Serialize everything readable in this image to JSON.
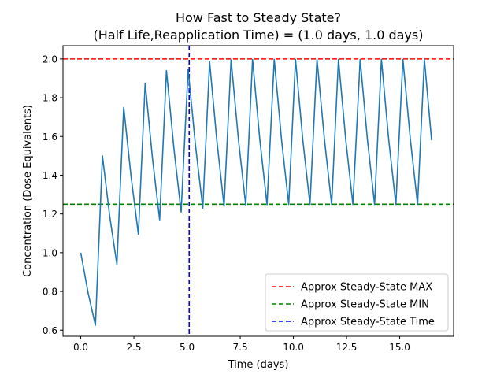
{
  "chart_data": {
    "type": "line",
    "title_line1": "How Fast to Steady State?",
    "title_line2": "(Half Life,Reapplication Time) = (1.0 days, 1.0 days)",
    "xlabel": "Time (days)",
    "ylabel": "Concentration (Dose Equivalents)",
    "xlim": [
      -0.835,
      17.535
    ],
    "ylim": [
      0.5685,
      2.0686
    ],
    "xticks": [
      0.0,
      2.5,
      5.0,
      7.5,
      10.0,
      12.5,
      15.0
    ],
    "xtick_labels": [
      "0.0",
      "2.5",
      "5.0",
      "7.5",
      "10.0",
      "12.5",
      "15.0"
    ],
    "yticks": [
      0.6,
      0.8,
      1.0,
      1.2,
      1.4,
      1.6,
      1.8,
      2.0
    ],
    "ytick_labels": [
      "0.6",
      "0.8",
      "1.0",
      "1.2",
      "1.4",
      "1.6",
      "1.8",
      "2.0"
    ],
    "grid": false,
    "legend_position": "lower-right",
    "series": [
      {
        "color": "#1f77b4",
        "x": [
          0.0,
          0.35,
          0.69,
          1.02,
          1.36,
          1.7,
          2.02,
          2.37,
          2.71,
          3.03,
          3.37,
          3.71,
          4.03,
          4.38,
          4.72,
          5.05,
          5.4,
          5.74,
          6.06,
          6.4,
          6.74,
          7.07,
          7.42,
          7.76,
          8.08,
          8.42,
          8.76,
          9.1,
          9.44,
          9.78,
          10.1,
          10.44,
          10.78,
          11.11,
          11.46,
          11.8,
          12.12,
          12.46,
          12.8,
          13.14,
          13.48,
          13.82,
          14.14,
          14.48,
          14.82,
          15.15,
          15.5,
          15.84,
          16.16,
          16.5
        ],
        "y": [
          1.0,
          0.79,
          0.625,
          1.5,
          1.19,
          0.94,
          1.75,
          1.39,
          1.095,
          1.875,
          1.49,
          1.17,
          1.94,
          1.54,
          1.21,
          1.945,
          1.55,
          1.23,
          1.985,
          1.58,
          1.24,
          1.995,
          1.58,
          1.245,
          1.997,
          1.585,
          1.248,
          1.998,
          1.586,
          1.249,
          1.998,
          1.586,
          1.249,
          1.998,
          1.586,
          1.249,
          1.998,
          1.586,
          1.249,
          1.998,
          1.586,
          1.249,
          1.998,
          1.586,
          1.249,
          1.998,
          1.586,
          1.249,
          1.998,
          1.58
        ]
      }
    ],
    "reference_lines": [
      {
        "orientation": "horizontal",
        "value": 2.0,
        "color": "#ff0000",
        "label": "Approx Steady-State MAX"
      },
      {
        "orientation": "horizontal",
        "value": 1.25,
        "color": "#008000",
        "label": "Approx Steady-State MIN"
      },
      {
        "orientation": "vertical",
        "value": 5.1,
        "color": "#0000ff",
        "label": "Approx Steady-State Time"
      }
    ]
  }
}
